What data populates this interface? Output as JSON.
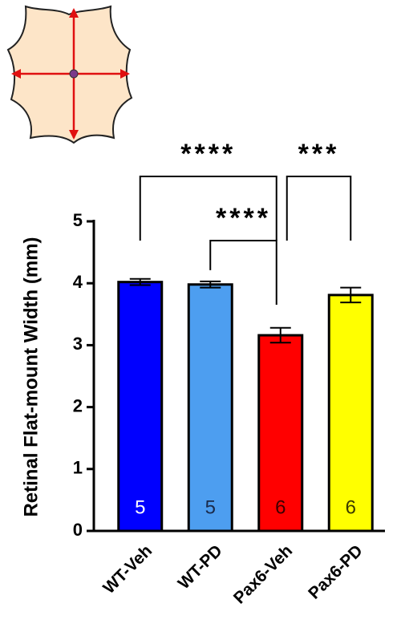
{
  "chart_data": {
    "type": "bar",
    "y_label": "Retinal Flat-mount Width (mm)",
    "categories": [
      "WT-Veh",
      "WT-PD",
      "Pax6-Veh",
      "Pax6-PD"
    ],
    "values": [
      4.02,
      3.98,
      3.16,
      3.81
    ],
    "errors": [
      0.05,
      0.05,
      0.12,
      0.12
    ],
    "colors": [
      "#0000ff",
      "#4d9ef0",
      "#ff0000",
      "#ffff00"
    ],
    "n": [
      5,
      5,
      6,
      6
    ],
    "n_colors": [
      "#ffffff",
      "#1a2a4a",
      "#3a0000",
      "#3a3a00"
    ],
    "ylim": [
      0,
      5
    ],
    "yticks": [
      0,
      1,
      2,
      3,
      4,
      5
    ],
    "comparisons": [
      {
        "from": 0,
        "to": 2,
        "label": "****"
      },
      {
        "from": 2,
        "to": 3,
        "label": "***"
      },
      {
        "from": 1,
        "to": 2,
        "label": "****"
      }
    ]
  }
}
